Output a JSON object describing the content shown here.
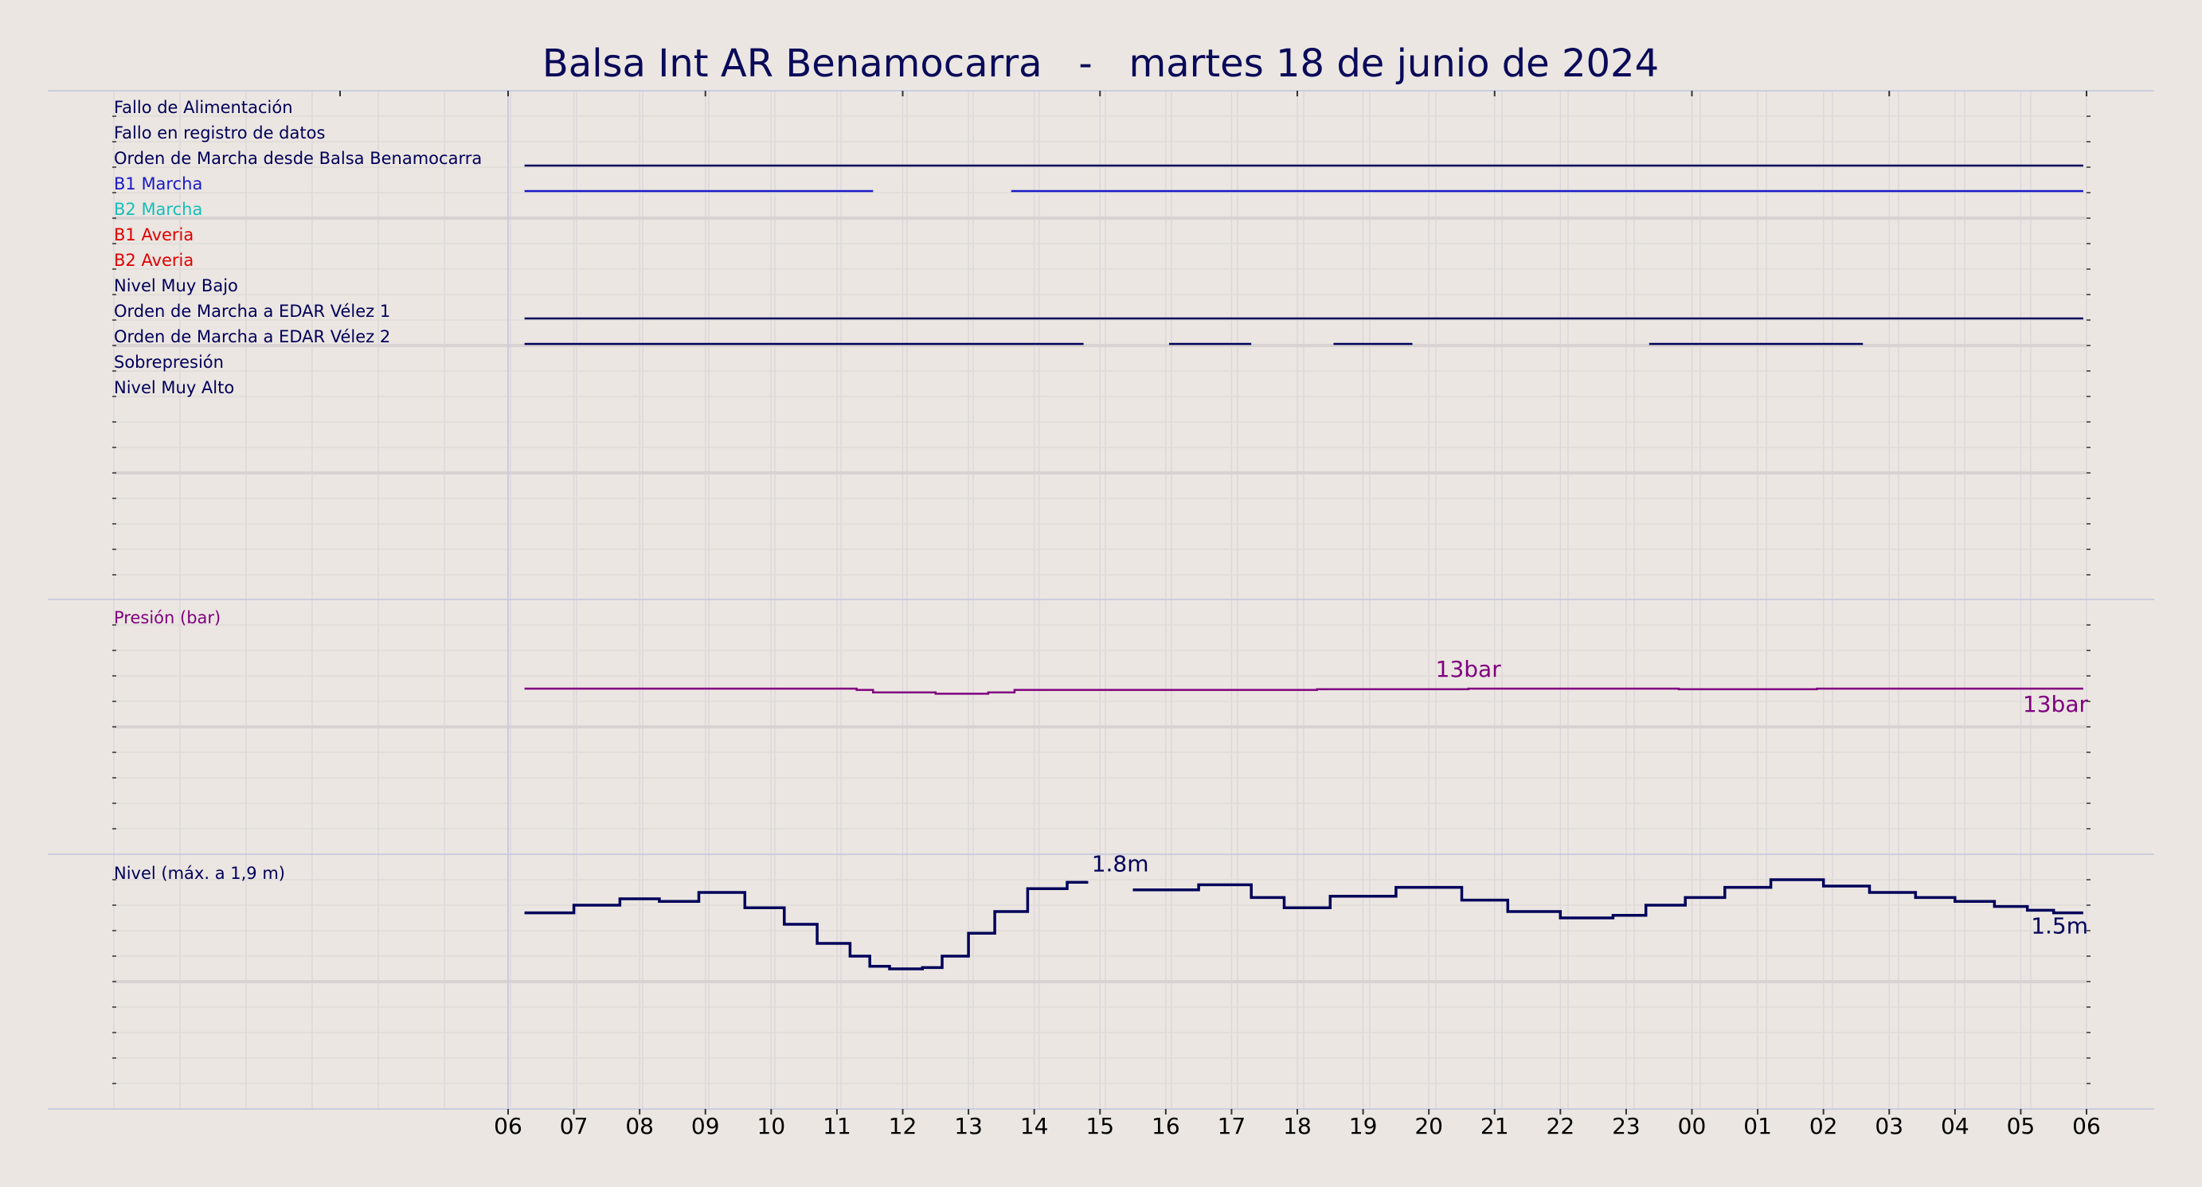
{
  "chart_data": {
    "type": "line",
    "title": "Balsa Int AR Benamocarra   -   martes 18 de junio de 2024",
    "x_tick_labels": [
      "06",
      "07",
      "08",
      "09",
      "10",
      "11",
      "12",
      "13",
      "14",
      "15",
      "16",
      "17",
      "18",
      "19",
      "20",
      "21",
      "22",
      "23",
      "00",
      "01",
      "02",
      "03",
      "04",
      "05",
      "06"
    ],
    "x_range_hours": [
      0,
      24
    ],
    "grid": true,
    "colors": {
      "background": "#ebe6e1",
      "navy": "#00005a",
      "blue": "#1a1ac8",
      "cyan": "#17bebb",
      "red": "#e00000",
      "purple": "#800080"
    },
    "digital_panel": {
      "signals": [
        {
          "name": "Fallo de Alimentación",
          "color": "#00005a",
          "on_intervals": []
        },
        {
          "name": "Fallo en registro de datos",
          "color": "#00005a",
          "on_intervals": []
        },
        {
          "name": "Orden de Marcha desde Balsa Benamocarra",
          "color": "#00005a",
          "on_intervals": [
            [
              0.25,
              23.95
            ]
          ]
        },
        {
          "name": "B1 Marcha",
          "color": "#1a1ac8",
          "on_intervals": [
            [
              0.25,
              5.55
            ],
            [
              7.65,
              23.95
            ]
          ]
        },
        {
          "name": "B2 Marcha",
          "color": "#17bebb",
          "on_intervals": []
        },
        {
          "name": "B1 Averia",
          "color": "#e00000",
          "on_intervals": []
        },
        {
          "name": "B2 Averia",
          "color": "#e00000",
          "on_intervals": []
        },
        {
          "name": "Nivel Muy Bajo",
          "color": "#00005a",
          "on_intervals": []
        },
        {
          "name": "Orden de Marcha a EDAR Vélez 1",
          "color": "#00005a",
          "on_intervals": [
            [
              0.25,
              23.95
            ]
          ]
        },
        {
          "name": "Orden de Marcha a EDAR Vélez 2",
          "color": "#00005a",
          "on_intervals": [
            [
              0.25,
              8.75
            ],
            [
              10.05,
              11.3
            ],
            [
              12.55,
              13.75
            ],
            [
              17.35,
              20.6
            ]
          ]
        },
        {
          "name": "Sobrepresión",
          "color": "#00005a",
          "on_intervals": []
        },
        {
          "name": "Nivel Muy Alto",
          "color": "#00005a",
          "on_intervals": []
        }
      ]
    },
    "pressure_panel": {
      "label": "Presión (bar)",
      "color": "#800080",
      "unit": "bar",
      "y_range": [
        0,
        20
      ],
      "x": [
        0.25,
        5.3,
        5.55,
        6.5,
        7.3,
        7.7,
        8.8,
        12.3,
        14.6,
        17.8,
        19.9,
        23.95
      ],
      "values": [
        13.0,
        12.9,
        12.7,
        12.6,
        12.7,
        12.9,
        12.9,
        12.95,
        13.0,
        12.95,
        13.0,
        13.0
      ],
      "peak_annotation": {
        "x": 13.8,
        "text": "13bar"
      },
      "last_annotation": "13bar"
    },
    "level_panel": {
      "label": "Nivel (máx. a 1,9 m)",
      "color": "#00005a",
      "unit": "m",
      "y_range": [
        0,
        2
      ],
      "x": [
        0.25,
        1.0,
        1.7,
        2.3,
        2.9,
        3.6,
        4.2,
        4.7,
        5.2,
        5.5,
        5.8,
        6.3,
        6.6,
        7.0,
        7.4,
        7.9,
        8.5,
        8.8,
        9.5,
        10.5,
        11.3,
        11.8,
        12.5,
        13.5,
        14.5,
        15.2,
        16.0,
        16.8,
        17.3,
        17.9,
        18.5,
        19.2,
        20.0,
        20.7,
        21.4,
        22.0,
        22.6,
        23.1,
        23.5,
        23.95
      ],
      "values": [
        1.54,
        1.6,
        1.65,
        1.63,
        1.7,
        1.58,
        1.45,
        1.3,
        1.2,
        1.12,
        1.1,
        1.11,
        1.2,
        1.38,
        1.55,
        1.73,
        1.78,
        1.79,
        1.72,
        1.76,
        1.66,
        1.58,
        1.67,
        1.74,
        1.64,
        1.55,
        1.5,
        1.52,
        1.6,
        1.66,
        1.74,
        1.8,
        1.75,
        1.7,
        1.66,
        1.63,
        1.59,
        1.56,
        1.54,
        1.54
      ],
      "peak_annotation": {
        "x": 8.8,
        "text": "1.8m"
      },
      "last_annotation": "1.5m"
    }
  }
}
